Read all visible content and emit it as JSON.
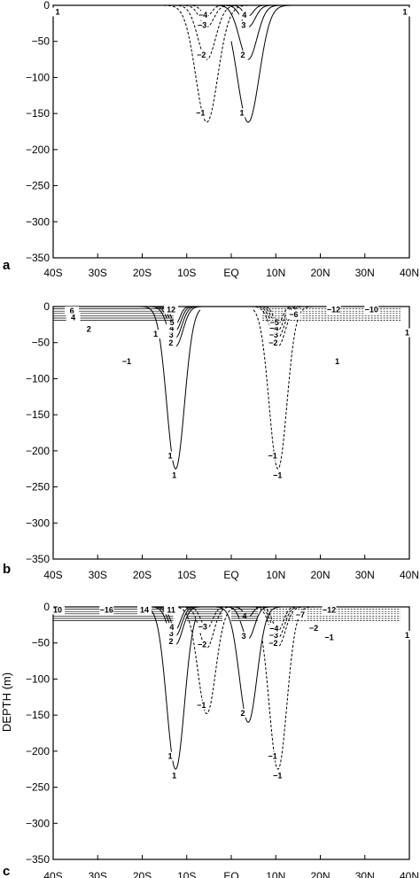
{
  "chart_data": [
    {
      "type": "contour",
      "panel_label": "a",
      "ylabel": "",
      "xlim": [
        -40,
        40
      ],
      "ylim": [
        -350,
        0
      ],
      "x_ticks": [
        -40,
        -30,
        -20,
        -10,
        0,
        10,
        20,
        30,
        40
      ],
      "x_tick_labels": [
        "40S",
        "30S",
        "20S",
        "10S",
        "EQ",
        "10N",
        "20N",
        "30N",
        "40N"
      ],
      "y_ticks": [
        0,
        -50,
        -100,
        -150,
        -200,
        -250,
        -300,
        -350
      ],
      "y_tick_labels": [
        "0",
        "−50",
        "−100",
        "−150",
        "−200",
        "−250",
        "−300",
        "−350"
      ],
      "contours": [
        {
          "label": "−1",
          "style": "dashed",
          "center_lat": -5.5,
          "depth": 162,
          "width": 3.5,
          "surface_lat": [
            -38,
            6
          ]
        },
        {
          "label": "−2",
          "style": "dashed",
          "center_lat": -5.5,
          "depth": 75,
          "width": 2.8
        },
        {
          "label": "−3",
          "style": "dashed",
          "center_lat": -5.5,
          "depth": 30,
          "width": 2.2
        },
        {
          "label": "−4",
          "style": "dashed",
          "center_lat": -5.5,
          "depth": 15,
          "width": 1.6
        },
        {
          "label": "1",
          "style": "solid",
          "center_lat": 3.8,
          "depth": 162,
          "width": 3.5,
          "surface_lat": [
            0,
            38
          ]
        },
        {
          "label": "2",
          "style": "solid",
          "center_lat": 3.8,
          "depth": 75,
          "width": 2.8
        },
        {
          "label": "3",
          "style": "solid",
          "center_lat": 3.8,
          "depth": 30,
          "width": 2.2
        },
        {
          "label": "4",
          "style": "solid",
          "center_lat": 3.8,
          "depth": 15,
          "width": 1.6
        }
      ],
      "edge_labels": [
        {
          "text": "1",
          "lat": -39,
          "depth": 8
        },
        {
          "text": "1",
          "lat": 39,
          "depth": 8
        }
      ]
    },
    {
      "type": "contour",
      "panel_label": "b",
      "ylabel": "",
      "xlim": [
        -40,
        40
      ],
      "ylim": [
        -350,
        0
      ],
      "x_ticks": [
        -40,
        -30,
        -20,
        -10,
        0,
        10,
        20,
        30,
        40
      ],
      "x_tick_labels": [
        "40S",
        "30S",
        "20S",
        "10S",
        "EQ",
        "10N",
        "20N",
        "30N",
        "40N"
      ],
      "y_ticks": [
        0,
        -50,
        -100,
        -150,
        -200,
        -250,
        -300,
        -350
      ],
      "y_tick_labels": [
        "0",
        "−50",
        "−100",
        "−150",
        "−200",
        "−250",
        "−300",
        "−350"
      ],
      "contours": [
        {
          "label": "1",
          "style": "solid",
          "center_lat": -12.5,
          "depth": 225,
          "width": 2.8,
          "surface_lat": [
            -40,
            -7
          ]
        },
        {
          "label": "2",
          "style": "solid",
          "center_lat": -12.5,
          "depth": 55,
          "width": 2.3
        },
        {
          "label": "3",
          "style": "solid",
          "center_lat": -12.5,
          "depth": 43,
          "width": 2.0
        },
        {
          "label": "4",
          "style": "solid",
          "center_lat": -12.5,
          "depth": 33,
          "width": 1.7
        },
        {
          "label": "5",
          "style": "solid",
          "center_lat": -12.5,
          "depth": 24,
          "width": 1.4
        },
        {
          "label": "−1",
          "style": "dashed",
          "center_lat": 10.5,
          "depth": 225,
          "width": 2.8,
          "surface_lat": [
            5,
            40
          ]
        },
        {
          "label": "−2",
          "style": "dashed",
          "center_lat": 10.5,
          "depth": 55,
          "width": 2.3
        },
        {
          "label": "−3",
          "style": "dashed",
          "center_lat": 10.5,
          "depth": 43,
          "width": 2.0
        },
        {
          "label": "−4",
          "style": "dashed",
          "center_lat": 10.5,
          "depth": 33,
          "width": 1.7
        },
        {
          "label": "−5",
          "style": "dashed",
          "center_lat": 10.5,
          "depth": 24,
          "width": 1.4
        }
      ],
      "edge_labels": [
        {
          "text": "−6",
          "lat": 14,
          "depth": 10
        },
        {
          "text": "−12",
          "lat": 23,
          "depth": 3
        },
        {
          "text": "−10",
          "lat": 31.5,
          "depth": 3
        },
        {
          "text": "−1",
          "lat": -23.5,
          "depth": 75
        },
        {
          "text": "1",
          "lat": 23.8,
          "depth": 75
        },
        {
          "text": "1",
          "lat": 39.5,
          "depth": 35
        },
        {
          "text": "1",
          "lat": -12.8,
          "depth": 233
        },
        {
          "text": "−1",
          "lat": 10.4,
          "depth": 233
        },
        {
          "text": "6",
          "lat": -35.8,
          "depth": 5
        },
        {
          "text": "4",
          "lat": -35.5,
          "depth": 14
        },
        {
          "text": "2",
          "lat": -32,
          "depth": 30
        },
        {
          "text": "1",
          "lat": -17,
          "depth": 37
        },
        {
          "text": "12",
          "lat": -13.5,
          "depth": 3
        }
      ]
    },
    {
      "type": "contour",
      "panel_label": "c",
      "ylabel": "DEPTH (m)",
      "xlim": [
        -40,
        40
      ],
      "ylim": [
        -350,
        0
      ],
      "x_ticks": [
        -40,
        -30,
        -20,
        -10,
        0,
        10,
        20,
        30,
        40
      ],
      "x_tick_labels": [
        "40S",
        "30S",
        "20S",
        "10S",
        "EQ",
        "10N",
        "20N",
        "30N",
        "40N"
      ],
      "y_ticks": [
        0,
        -50,
        -100,
        -150,
        -200,
        -250,
        -300,
        -350
      ],
      "y_tick_labels": [
        "0",
        "−50",
        "−100",
        "−150",
        "−200",
        "−250",
        "−300",
        "−350"
      ],
      "contours": [
        {
          "label": "1",
          "style": "solid",
          "center_lat": -12.5,
          "depth": 225,
          "width": 2.8,
          "surface_lat": [
            -40,
            -8
          ]
        },
        {
          "label": "2",
          "style": "solid",
          "center_lat": -12.5,
          "depth": 52,
          "width": 2.2
        },
        {
          "label": "3",
          "style": "solid",
          "center_lat": -12.5,
          "depth": 40,
          "width": 1.9
        },
        {
          "label": "4",
          "style": "solid",
          "center_lat": -12.5,
          "depth": 31,
          "width": 1.6
        },
        {
          "label": "−1",
          "style": "dashed",
          "center_lat": -5.5,
          "depth": 148,
          "width": 2.8
        },
        {
          "label": "−2",
          "style": "dashed",
          "center_lat": -5.5,
          "depth": 57,
          "width": 2.2
        },
        {
          "label": "−3",
          "style": "dashed",
          "center_lat": -5.5,
          "depth": 30,
          "width": 1.8
        },
        {
          "label": "2",
          "style": "solid",
          "center_lat": 3.8,
          "depth": 160,
          "width": 2.8
        },
        {
          "label": "3",
          "style": "solid",
          "center_lat": 3.8,
          "depth": 44,
          "width": 2.0
        },
        {
          "label": "4",
          "style": "solid",
          "center_lat": 3.8,
          "depth": 14,
          "width": 1.4
        },
        {
          "label": "−1",
          "style": "dashed",
          "center_lat": 10.5,
          "depth": 225,
          "width": 2.8,
          "surface_lat": [
            7,
            40
          ]
        },
        {
          "label": "−2",
          "style": "dashed",
          "center_lat": 10.5,
          "depth": 55,
          "width": 2.3
        },
        {
          "label": "−3",
          "style": "dashed",
          "center_lat": 10.5,
          "depth": 43,
          "width": 2.0
        },
        {
          "label": "−4",
          "style": "dashed",
          "center_lat": 10.5,
          "depth": 33,
          "width": 1.7
        }
      ],
      "edge_labels": [
        {
          "text": "−16",
          "lat": -28,
          "depth": 3
        },
        {
          "text": "14",
          "lat": -19.5,
          "depth": 3
        },
        {
          "text": "10",
          "lat": -39,
          "depth": 3
        },
        {
          "text": "−7",
          "lat": 15.5,
          "depth": 10
        },
        {
          "text": "−12",
          "lat": 22,
          "depth": 3
        },
        {
          "text": "−2",
          "lat": 18.5,
          "depth": 28
        },
        {
          "text": "−1",
          "lat": 22,
          "depth": 41
        },
        {
          "text": "1",
          "lat": -12.8,
          "depth": 233
        },
        {
          "text": "−1",
          "lat": 10.4,
          "depth": 233
        },
        {
          "text": "11",
          "lat": -13.5,
          "depth": 3
        },
        {
          "text": "1",
          "lat": 39.5,
          "depth": 38
        }
      ]
    }
  ]
}
